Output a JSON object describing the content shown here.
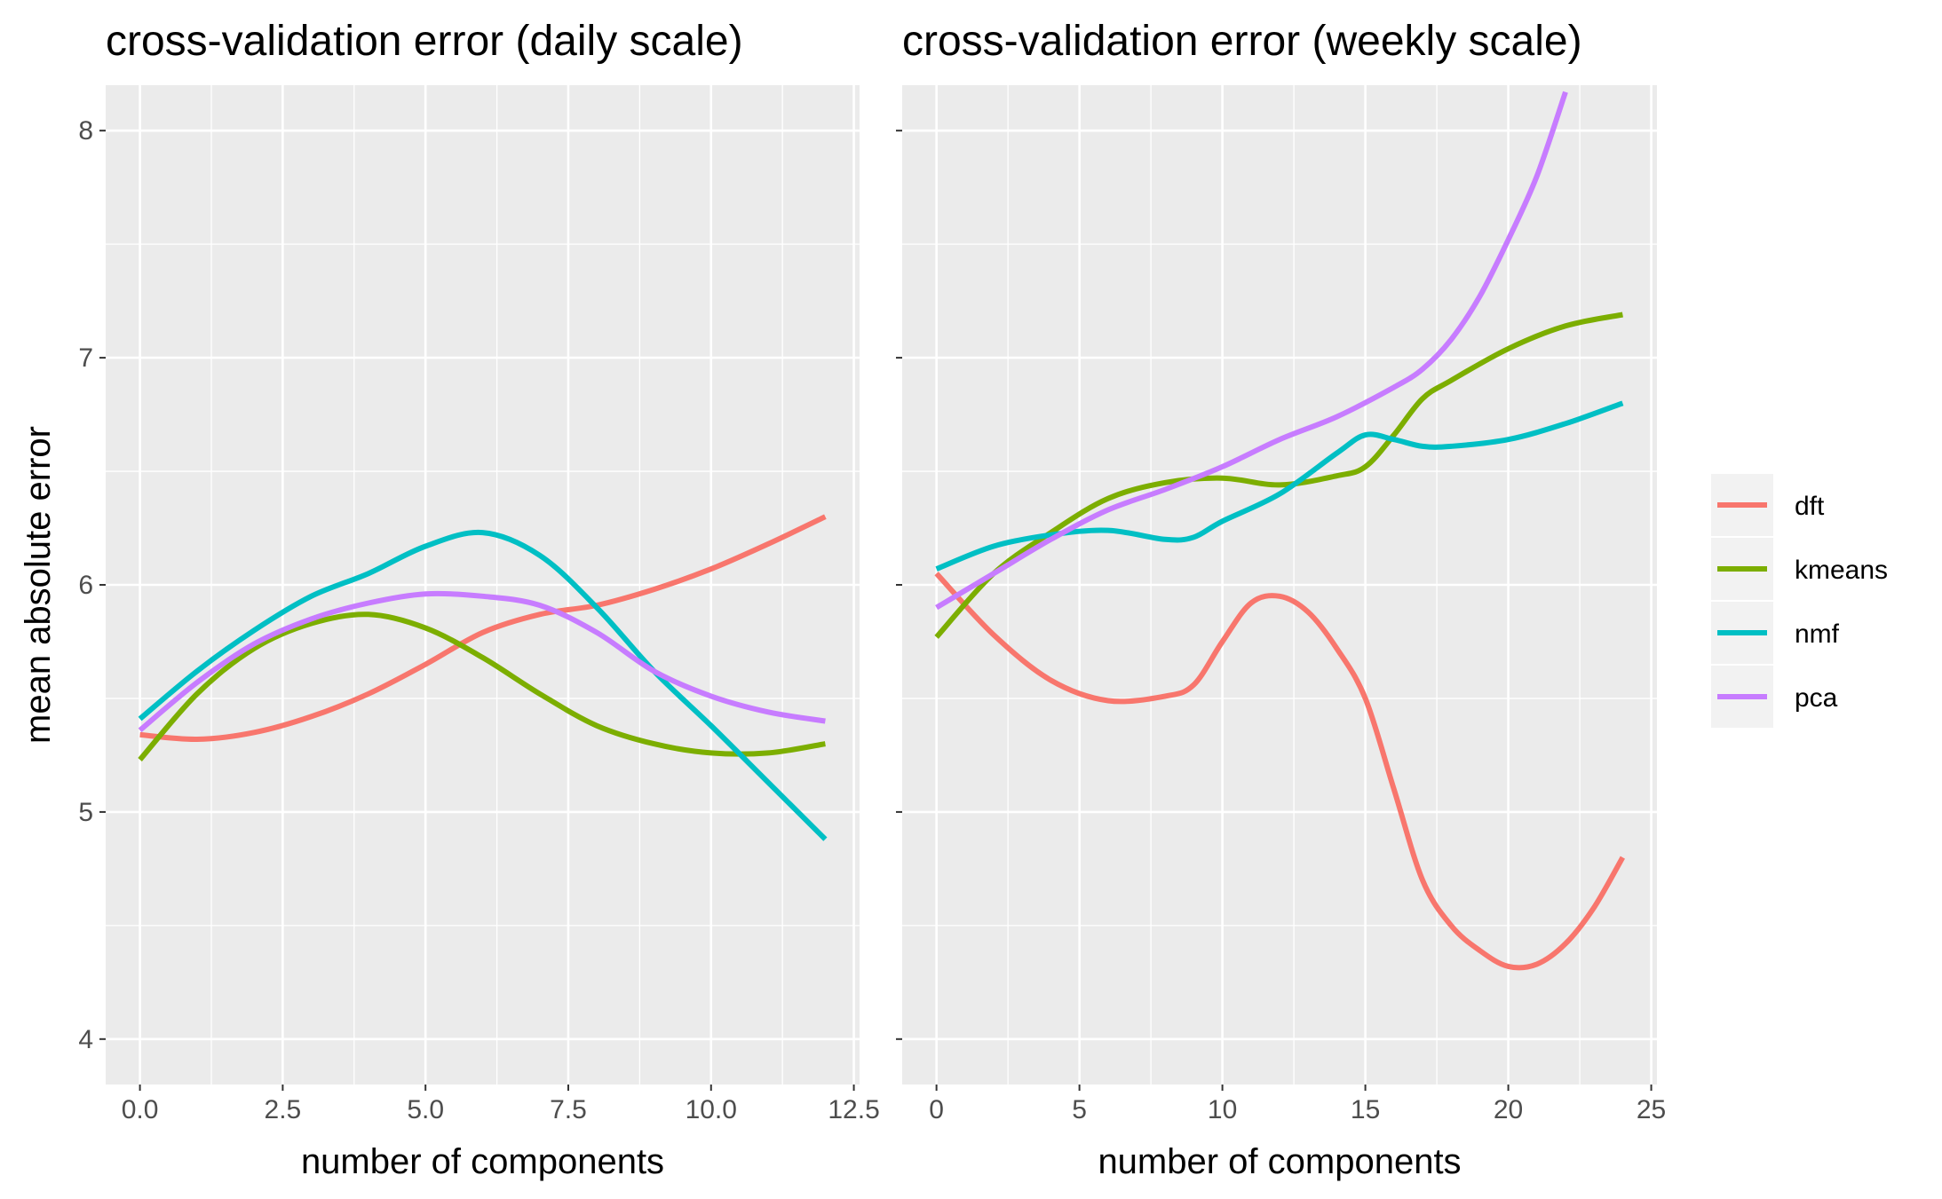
{
  "chart_data": [
    {
      "type": "line",
      "title": "cross-validation error (daily scale)",
      "xlabel": "number of components",
      "ylabel": "mean absolute error",
      "xlim": [
        -0.6,
        12.6
      ],
      "ylim": [
        3.8,
        8.2
      ],
      "xticks": [
        0,
        2.5,
        5,
        7.5,
        10,
        12.5
      ],
      "xtick_labels": [
        "0.0",
        "2.5",
        "5.0",
        "7.5",
        "10.0",
        "12.5"
      ],
      "yticks": [
        4,
        5,
        6,
        7,
        8
      ],
      "ytick_labels": [
        "4",
        "5",
        "6",
        "7",
        "8"
      ],
      "grid": true,
      "series": [
        {
          "name": "dft",
          "color": "#F8766D",
          "points": [
            [
              0,
              5.34
            ],
            [
              1,
              5.32
            ],
            [
              2,
              5.35
            ],
            [
              3,
              5.42
            ],
            [
              4,
              5.52
            ],
            [
              5,
              5.65
            ],
            [
              6,
              5.79
            ],
            [
              7,
              5.87
            ],
            [
              8,
              5.91
            ],
            [
              9,
              5.98
            ],
            [
              10,
              6.07
            ],
            [
              11,
              6.18
            ],
            [
              12,
              6.3
            ]
          ]
        },
        {
          "name": "kmeans",
          "color": "#7CAE00",
          "points": [
            [
              0,
              5.23
            ],
            [
              1,
              5.52
            ],
            [
              2,
              5.72
            ],
            [
              3,
              5.83
            ],
            [
              4,
              5.87
            ],
            [
              5,
              5.81
            ],
            [
              6,
              5.68
            ],
            [
              7,
              5.52
            ],
            [
              8,
              5.38
            ],
            [
              9,
              5.3
            ],
            [
              10,
              5.26
            ],
            [
              11,
              5.26
            ],
            [
              12,
              5.3
            ]
          ]
        },
        {
          "name": "nmf",
          "color": "#00BFC4",
          "points": [
            [
              0,
              5.41
            ],
            [
              1,
              5.62
            ],
            [
              2,
              5.8
            ],
            [
              3,
              5.95
            ],
            [
              4,
              6.05
            ],
            [
              5,
              6.17
            ],
            [
              6,
              6.23
            ],
            [
              7,
              6.13
            ],
            [
              8,
              5.9
            ],
            [
              9,
              5.62
            ],
            [
              10,
              5.38
            ],
            [
              11,
              5.13
            ],
            [
              12,
              4.88
            ]
          ]
        },
        {
          "name": "pca",
          "color": "#C77CFF",
          "points": [
            [
              0,
              5.36
            ],
            [
              1,
              5.57
            ],
            [
              2,
              5.74
            ],
            [
              3,
              5.85
            ],
            [
              4,
              5.92
            ],
            [
              5,
              5.96
            ],
            [
              6,
              5.95
            ],
            [
              7,
              5.91
            ],
            [
              8,
              5.79
            ],
            [
              9,
              5.62
            ],
            [
              10,
              5.51
            ],
            [
              11,
              5.44
            ],
            [
              12,
              5.4
            ]
          ]
        }
      ]
    },
    {
      "type": "line",
      "title": "cross-validation error (weekly scale)",
      "xlabel": "number of components",
      "ylabel": "",
      "xlim": [
        -1.2,
        25.2
      ],
      "ylim": [
        3.8,
        8.2
      ],
      "xticks": [
        0,
        5,
        10,
        15,
        20,
        25
      ],
      "xtick_labels": [
        "0",
        "5",
        "10",
        "15",
        "20",
        "25"
      ],
      "yticks": [
        4,
        5,
        6,
        7,
        8
      ],
      "ytick_labels": [
        "",
        "",
        "",
        "",
        ""
      ],
      "grid": true,
      "series": [
        {
          "name": "dft",
          "color": "#F8766D",
          "points": [
            [
              0,
              6.05
            ],
            [
              2,
              5.78
            ],
            [
              4,
              5.58
            ],
            [
              6,
              5.49
            ],
            [
              8,
              5.51
            ],
            [
              9,
              5.56
            ],
            [
              10,
              5.75
            ],
            [
              11,
              5.92
            ],
            [
              12,
              5.95
            ],
            [
              13,
              5.88
            ],
            [
              14,
              5.72
            ],
            [
              15,
              5.5
            ],
            [
              16,
              5.1
            ],
            [
              17,
              4.7
            ],
            [
              18,
              4.5
            ],
            [
              19,
              4.39
            ],
            [
              20,
              4.32
            ],
            [
              21,
              4.33
            ],
            [
              22,
              4.42
            ],
            [
              23,
              4.58
            ],
            [
              24,
              4.8
            ]
          ]
        },
        {
          "name": "kmeans",
          "color": "#7CAE00",
          "points": [
            [
              0,
              5.77
            ],
            [
              2,
              6.05
            ],
            [
              4,
              6.23
            ],
            [
              6,
              6.38
            ],
            [
              8,
              6.45
            ],
            [
              10,
              6.47
            ],
            [
              12,
              6.44
            ],
            [
              14,
              6.48
            ],
            [
              15,
              6.52
            ],
            [
              16,
              6.66
            ],
            [
              17,
              6.82
            ],
            [
              18,
              6.9
            ],
            [
              20,
              7.04
            ],
            [
              22,
              7.14
            ],
            [
              24,
              7.19
            ]
          ]
        },
        {
          "name": "nmf",
          "color": "#00BFC4",
          "points": [
            [
              0,
              6.07
            ],
            [
              2,
              6.17
            ],
            [
              4,
              6.22
            ],
            [
              6,
              6.24
            ],
            [
              8,
              6.2
            ],
            [
              9,
              6.21
            ],
            [
              10,
              6.28
            ],
            [
              12,
              6.4
            ],
            [
              14,
              6.58
            ],
            [
              15,
              6.66
            ],
            [
              16,
              6.64
            ],
            [
              17,
              6.61
            ],
            [
              18,
              6.61
            ],
            [
              20,
              6.64
            ],
            [
              22,
              6.71
            ],
            [
              24,
              6.8
            ]
          ]
        },
        {
          "name": "pca",
          "color": "#C77CFF",
          "points": [
            [
              0,
              5.9
            ],
            [
              2,
              6.05
            ],
            [
              4,
              6.2
            ],
            [
              6,
              6.33
            ],
            [
              8,
              6.42
            ],
            [
              10,
              6.52
            ],
            [
              12,
              6.64
            ],
            [
              14,
              6.74
            ],
            [
              16,
              6.87
            ],
            [
              17,
              6.95
            ],
            [
              18,
              7.08
            ],
            [
              19,
              7.27
            ],
            [
              20,
              7.52
            ],
            [
              21,
              7.8
            ],
            [
              22,
              8.17
            ]
          ]
        }
      ]
    }
  ],
  "legend": {
    "placement": "right",
    "entries": [
      {
        "name": "dft",
        "color": "#F8766D"
      },
      {
        "name": "kmeans",
        "color": "#7CAE00"
      },
      {
        "name": "nmf",
        "color": "#00BFC4"
      },
      {
        "name": "pca",
        "color": "#C77CFF"
      }
    ]
  }
}
